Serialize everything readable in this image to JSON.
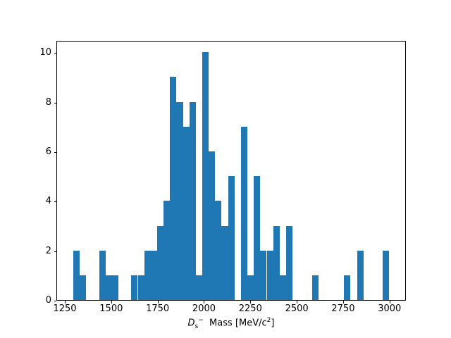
{
  "figure": {
    "background": "#ffffff",
    "bar_color": "#1f77b4",
    "axis_color": "#000000"
  },
  "xlabel_parts": {
    "symbol": "D",
    "subscript": "s",
    "superscript": "−",
    "rest": "  Mass [MeV/c",
    "exponent": "2",
    "close": "]"
  },
  "chart_data": {
    "type": "bar",
    "subtype": "histogram",
    "title": "",
    "xlabel": "D_s^-  Mass [MeV/c^2]",
    "ylabel": "",
    "grid": false,
    "legend": null,
    "xlim": [
      1204.4,
      3088.2
    ],
    "ylim": [
      0,
      10.5
    ],
    "xticks": [
      1250,
      1500,
      1750,
      2000,
      2250,
      2500,
      2750,
      3000
    ],
    "yticks": [
      0,
      2,
      4,
      6,
      8,
      10
    ],
    "bar_color": "#1f77b4",
    "bin_width": 34.75,
    "bin_edges": [
      1291.8,
      1326.6,
      1361.3,
      1396.1,
      1430.8,
      1465.6,
      1500.3,
      1535.1,
      1569.8,
      1604.6,
      1639.3,
      1674.1,
      1708.8,
      1743.6,
      1778.3,
      1813.1,
      1847.8,
      1882.6,
      1917.3,
      1952.1,
      1986.8,
      2021.6,
      2056.3,
      2091.1,
      2125.8,
      2160.6,
      2195.3,
      2230.1,
      2264.8,
      2299.6,
      2334.3,
      2369.1,
      2403.8,
      2438.6,
      2473.3,
      2508.1,
      2542.8,
      2577.6,
      2612.3,
      2647.1,
      2681.8,
      2716.6,
      2751.3,
      2786.1,
      2820.8,
      2855.6,
      2890.3,
      2925.1,
      2959.8,
      2994.6
    ],
    "counts": [
      2,
      1,
      0,
      0,
      2,
      1,
      1,
      0,
      0,
      1,
      1,
      2,
      2,
      3,
      4,
      9,
      8,
      7,
      8,
      1,
      10,
      6,
      4,
      3,
      5,
      0,
      7,
      1,
      5,
      2,
      2,
      3,
      1,
      3,
      0,
      0,
      0,
      1,
      0,
      0,
      0,
      0,
      1,
      0,
      2,
      0,
      0,
      0,
      2
    ]
  }
}
